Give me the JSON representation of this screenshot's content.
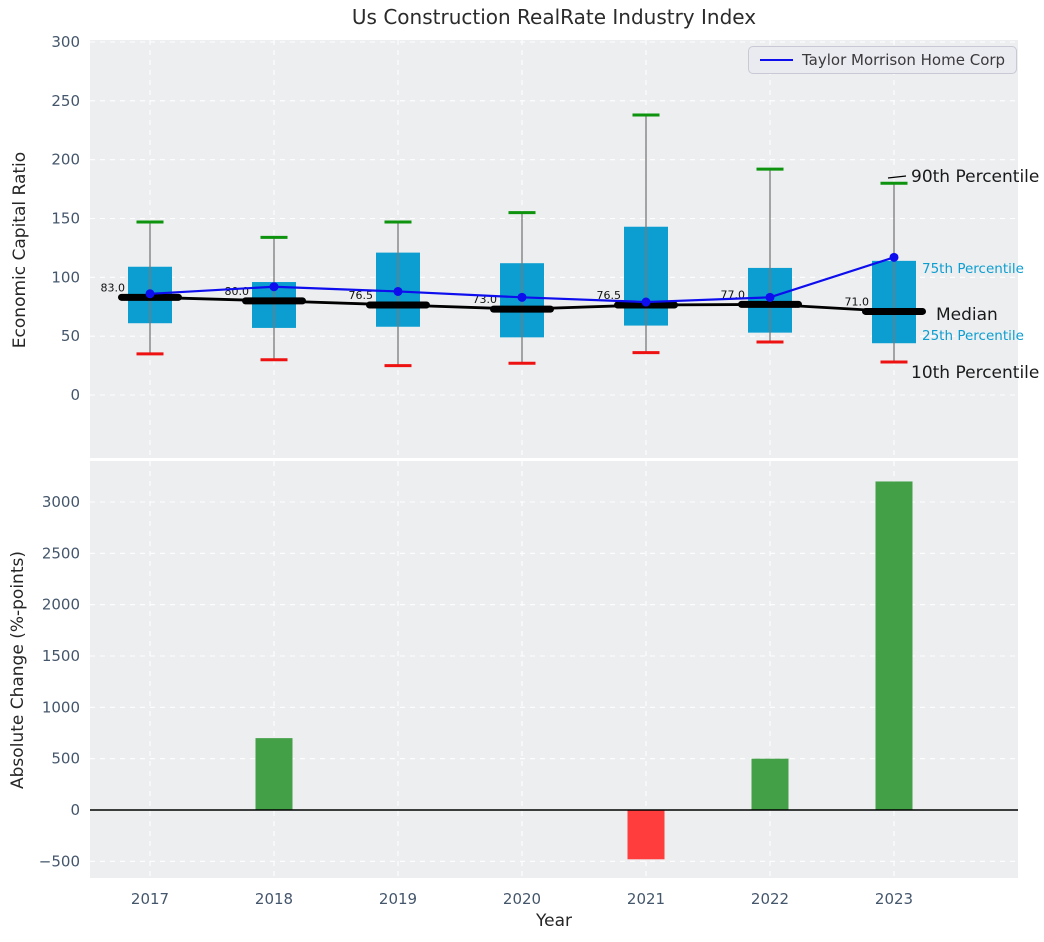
{
  "title": "Us Construction RealRate Industry Index",
  "legend": {
    "label": "Taylor Morrison Home Corp"
  },
  "colors": {
    "plot_bg": "#eceef0",
    "grid": "#ffffff",
    "box_fill": "#0d9ed1",
    "whisker": "#7a7a7a",
    "cap_top": "#0d930d",
    "cap_bottom": "#ee1111",
    "median": "#000000",
    "company_line": "#0d0dee",
    "bar_positive": "#43a047",
    "bar_negative": "#ff3d3d",
    "zero_line": "#000000",
    "tick_label": "#44566b",
    "annotation_cyan": "#0d9ed1",
    "annotation_dark": "#1a1a1a"
  },
  "chart_data": [
    {
      "type": "box-percentile",
      "ylabel": "Economic Capital Ratio",
      "categories": [
        "2017",
        "2018",
        "2019",
        "2020",
        "2021",
        "2022",
        "2023"
      ],
      "yticks": [
        0,
        50,
        100,
        150,
        200,
        250,
        300
      ],
      "ylim": [
        -54,
        302
      ],
      "grid": true,
      "series": [
        {
          "name": "p10",
          "values": [
            35,
            30,
            25,
            27,
            36,
            45,
            28
          ]
        },
        {
          "name": "p25",
          "values": [
            61,
            57,
            58,
            49,
            59,
            53,
            44
          ]
        },
        {
          "name": "median",
          "values": [
            83.0,
            80.0,
            76.5,
            73.0,
            76.5,
            77.0,
            71.0
          ]
        },
        {
          "name": "p75",
          "values": [
            109,
            96,
            121,
            112,
            143,
            108,
            114
          ]
        },
        {
          "name": "p90",
          "values": [
            147,
            134,
            147,
            155,
            238,
            192,
            180
          ]
        },
        {
          "name": "Taylor Morrison Home Corp",
          "values": [
            86,
            92,
            88,
            83,
            79,
            83,
            117
          ]
        }
      ],
      "median_labels": [
        "83.0",
        "80.0",
        "76.5",
        "73.0",
        "76.5",
        "77.0",
        "71.0"
      ],
      "annotations": {
        "p90": "90th Percentile",
        "p75": "75th Percentile",
        "median": "Median",
        "p25": "25th Percentile",
        "p10": "10th Percentile"
      },
      "legend_position": "upper right"
    },
    {
      "type": "bar",
      "ylabel": "Absolute Change (%-points)",
      "xlabel": "Year",
      "categories": [
        "2017",
        "2018",
        "2019",
        "2020",
        "2021",
        "2022",
        "2023"
      ],
      "values": [
        0,
        700,
        0,
        0,
        -480,
        500,
        3200
      ],
      "yticks": [
        -500,
        0,
        500,
        1000,
        1500,
        2000,
        2500,
        3000
      ],
      "ylim": [
        -680,
        3450
      ],
      "grid": true
    }
  ]
}
